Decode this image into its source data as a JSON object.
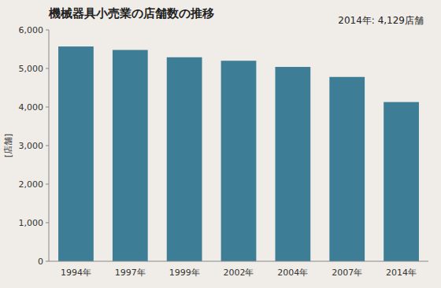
{
  "chart_data": {
    "type": "bar",
    "title": "機械器具小売業の店舗数の推移",
    "ylabel": "[店舗]",
    "annotation": "2014年: 4,129店舗",
    "categories": [
      "1994年",
      "1997年",
      "1999年",
      "2002年",
      "2004年",
      "2007年",
      "2014年"
    ],
    "values": [
      5570,
      5480,
      5290,
      5200,
      5040,
      4780,
      4129
    ],
    "color": "#3d7d96",
    "ylim": [
      0,
      6000
    ],
    "yticks": [
      0,
      {
        "value": 1000,
        "label": "1,000"
      },
      {
        "value": 2000,
        "label": "2,000"
      },
      {
        "value": 3000,
        "label": "3,000"
      },
      {
        "value": 4000,
        "label": "4,000"
      },
      {
        "value": 5000,
        "label": "5,000"
      },
      {
        "value": 6000,
        "label": "6,000"
      }
    ],
    "grid": false
  }
}
